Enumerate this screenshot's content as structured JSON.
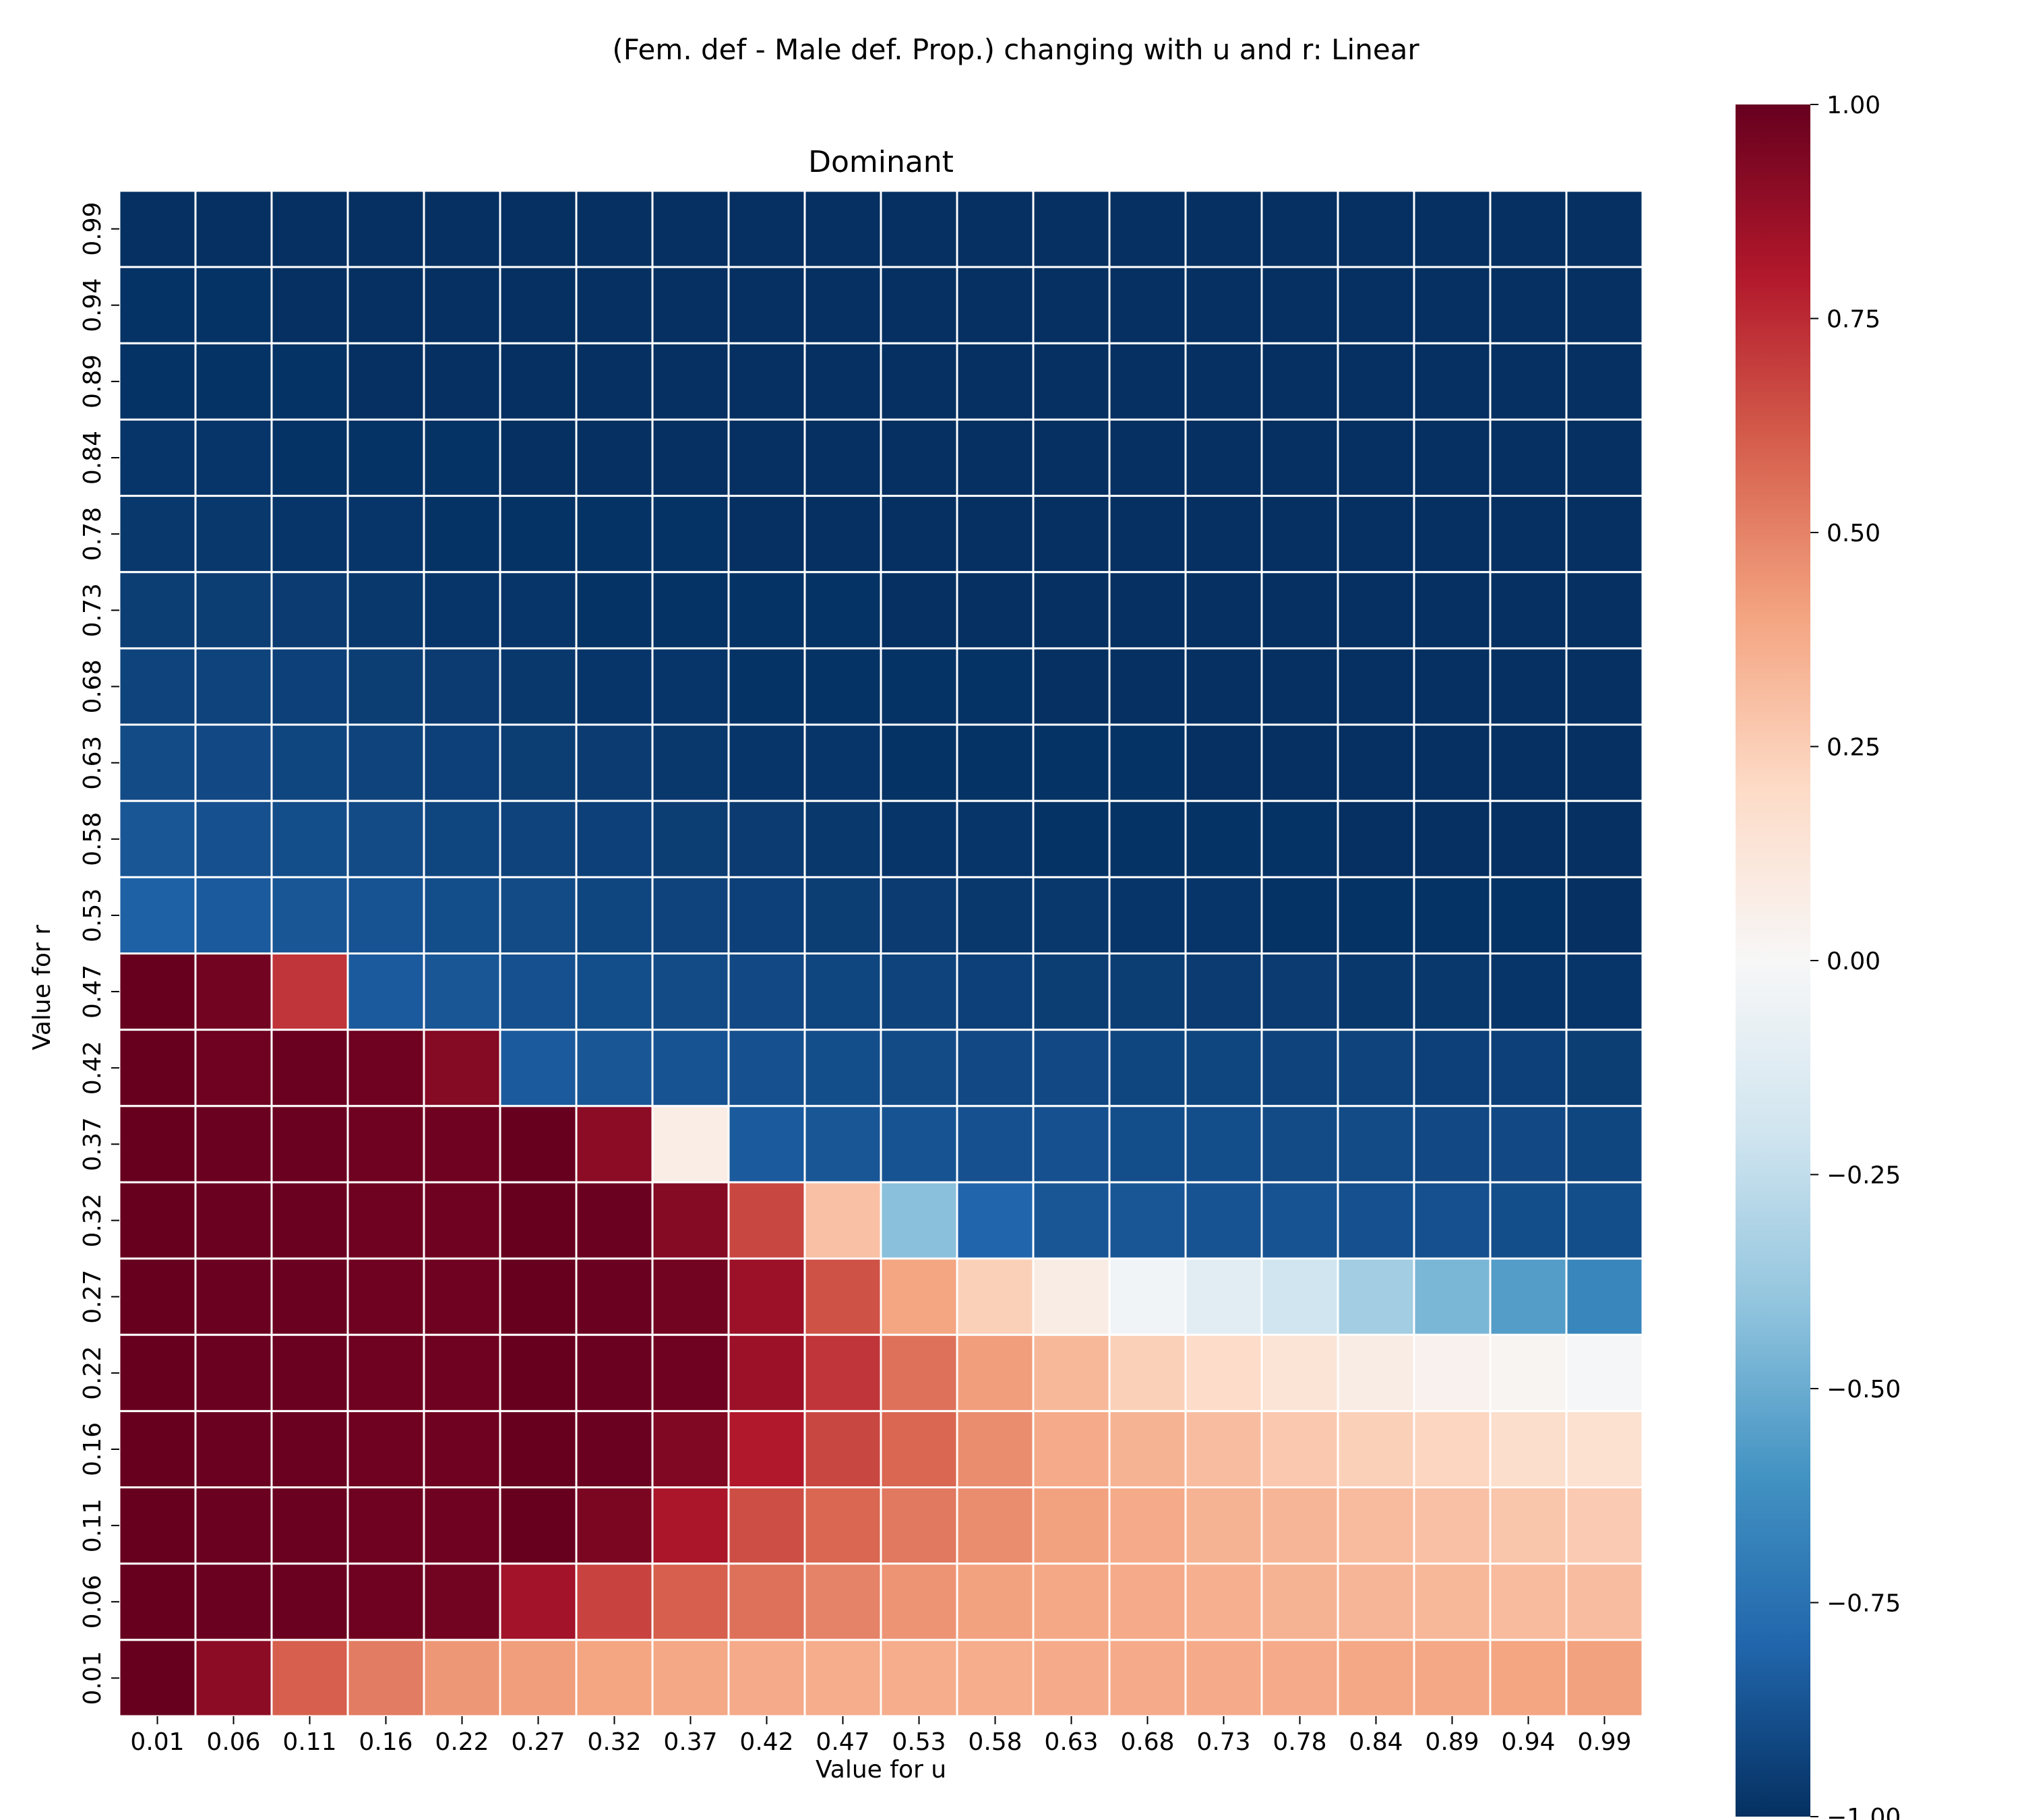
{
  "chart_data": {
    "type": "heatmap",
    "title": "(Fem. def - Male def. Prop.) changing with u and r: Linear",
    "subtitle": "Dominant",
    "xlabel": "Value for u",
    "ylabel": "Value for r",
    "x": [
      "0.01",
      "0.06",
      "0.11",
      "0.16",
      "0.22",
      "0.27",
      "0.32",
      "0.37",
      "0.42",
      "0.47",
      "0.53",
      "0.58",
      "0.63",
      "0.68",
      "0.73",
      "0.78",
      "0.84",
      "0.89",
      "0.94",
      "0.99"
    ],
    "y": [
      "0.99",
      "0.94",
      "0.89",
      "0.84",
      "0.78",
      "0.73",
      "0.68",
      "0.63",
      "0.58",
      "0.53",
      "0.47",
      "0.42",
      "0.37",
      "0.32",
      "0.27",
      "0.22",
      "0.16",
      "0.11",
      "0.06",
      "0.01"
    ],
    "values": [
      [
        -1.0,
        -1.0,
        -1.0,
        -1.0,
        -1.0,
        -1.0,
        -1.0,
        -1.0,
        -1.0,
        -1.0,
        -1.0,
        -1.0,
        -1.0,
        -1.0,
        -1.0,
        -1.0,
        -1.0,
        -1.0,
        -1.0,
        -1.0
      ],
      [
        -0.99,
        -0.99,
        -1.0,
        -1.0,
        -1.0,
        -1.0,
        -1.0,
        -1.0,
        -1.0,
        -1.0,
        -1.0,
        -1.0,
        -1.0,
        -1.0,
        -1.0,
        -1.0,
        -1.0,
        -1.0,
        -1.0,
        -1.0
      ],
      [
        -0.99,
        -0.99,
        -0.99,
        -1.0,
        -1.0,
        -1.0,
        -1.0,
        -1.0,
        -1.0,
        -1.0,
        -1.0,
        -1.0,
        -1.0,
        -1.0,
        -1.0,
        -1.0,
        -1.0,
        -1.0,
        -1.0,
        -1.0
      ],
      [
        -0.98,
        -0.98,
        -0.99,
        -0.99,
        -0.99,
        -1.0,
        -1.0,
        -1.0,
        -1.0,
        -1.0,
        -1.0,
        -1.0,
        -1.0,
        -1.0,
        -1.0,
        -1.0,
        -1.0,
        -1.0,
        -1.0,
        -1.0
      ],
      [
        -0.97,
        -0.97,
        -0.98,
        -0.98,
        -0.99,
        -0.99,
        -0.99,
        -0.99,
        -1.0,
        -1.0,
        -1.0,
        -1.0,
        -1.0,
        -1.0,
        -1.0,
        -1.0,
        -1.0,
        -1.0,
        -1.0,
        -1.0
      ],
      [
        -0.95,
        -0.95,
        -0.96,
        -0.97,
        -0.98,
        -0.98,
        -0.99,
        -0.99,
        -0.99,
        -0.99,
        -1.0,
        -1.0,
        -1.0,
        -1.0,
        -1.0,
        -1.0,
        -1.0,
        -1.0,
        -1.0,
        -1.0
      ],
      [
        -0.93,
        -0.93,
        -0.94,
        -0.95,
        -0.96,
        -0.97,
        -0.98,
        -0.98,
        -0.99,
        -0.99,
        -0.99,
        -0.99,
        -1.0,
        -1.0,
        -1.0,
        -1.0,
        -1.0,
        -1.0,
        -1.0,
        -1.0
      ],
      [
        -0.9,
        -0.91,
        -0.92,
        -0.93,
        -0.94,
        -0.95,
        -0.96,
        -0.97,
        -0.98,
        -0.98,
        -0.99,
        -0.99,
        -0.99,
        -0.99,
        -1.0,
        -1.0,
        -1.0,
        -1.0,
        -1.0,
        -1.0
      ],
      [
        -0.86,
        -0.88,
        -0.89,
        -0.9,
        -0.92,
        -0.93,
        -0.94,
        -0.95,
        -0.96,
        -0.97,
        -0.98,
        -0.98,
        -0.99,
        -0.99,
        -0.99,
        -0.99,
        -1.0,
        -1.0,
        -1.0,
        -1.0
      ],
      [
        -0.82,
        -0.84,
        -0.86,
        -0.87,
        -0.89,
        -0.9,
        -0.92,
        -0.93,
        -0.94,
        -0.95,
        -0.96,
        -0.97,
        -0.97,
        -0.98,
        -0.98,
        -0.99,
        -0.99,
        -0.99,
        -0.99,
        -1.0
      ],
      [
        1.0,
        0.97,
        0.72,
        -0.84,
        -0.86,
        -0.88,
        -0.89,
        -0.9,
        -0.91,
        -0.92,
        -0.93,
        -0.94,
        -0.95,
        -0.95,
        -0.96,
        -0.96,
        -0.97,
        -0.97,
        -0.98,
        -0.98
      ],
      [
        1.0,
        0.98,
        0.99,
        0.98,
        0.92,
        -0.84,
        -0.86,
        -0.87,
        -0.88,
        -0.89,
        -0.9,
        -0.91,
        -0.91,
        -0.92,
        -0.92,
        -0.93,
        -0.93,
        -0.94,
        -0.94,
        -0.95
      ],
      [
        1.0,
        0.99,
        0.99,
        0.98,
        0.98,
        1.0,
        0.9,
        0.07,
        -0.84,
        -0.86,
        -0.87,
        -0.88,
        -0.88,
        -0.89,
        -0.89,
        -0.9,
        -0.9,
        -0.91,
        -0.91,
        -0.92
      ],
      [
        1.0,
        0.99,
        0.99,
        0.98,
        0.98,
        1.0,
        0.99,
        0.92,
        0.67,
        0.3,
        -0.42,
        -0.8,
        -0.86,
        -0.86,
        -0.87,
        -0.87,
        -0.88,
        -0.88,
        -0.89,
        -0.89
      ],
      [
        1.0,
        0.99,
        0.99,
        0.98,
        0.98,
        1.0,
        0.99,
        0.97,
        0.86,
        0.64,
        0.4,
        0.24,
        0.08,
        -0.03,
        -0.11,
        -0.2,
        -0.35,
        -0.46,
        -0.56,
        -0.66
      ],
      [
        1.0,
        0.99,
        0.99,
        0.98,
        0.98,
        1.0,
        0.99,
        0.98,
        0.86,
        0.72,
        0.55,
        0.42,
        0.33,
        0.24,
        0.19,
        0.14,
        0.08,
        0.04,
        0.02,
        -0.01
      ],
      [
        1.0,
        0.99,
        0.99,
        0.98,
        0.98,
        1.0,
        0.99,
        0.93,
        0.8,
        0.67,
        0.58,
        0.47,
        0.38,
        0.35,
        0.31,
        0.27,
        0.24,
        0.22,
        0.18,
        0.16
      ],
      [
        1.0,
        0.99,
        0.99,
        0.98,
        0.98,
        1.0,
        0.95,
        0.82,
        0.65,
        0.58,
        0.53,
        0.47,
        0.41,
        0.38,
        0.35,
        0.34,
        0.32,
        0.3,
        0.28,
        0.26
      ],
      [
        1.0,
        0.99,
        0.99,
        0.98,
        0.97,
        0.84,
        0.68,
        0.6,
        0.55,
        0.5,
        0.45,
        0.41,
        0.39,
        0.38,
        0.36,
        0.35,
        0.34,
        0.33,
        0.32,
        0.31
      ],
      [
        1.0,
        0.9,
        0.6,
        0.52,
        0.44,
        0.42,
        0.4,
        0.39,
        0.38,
        0.37,
        0.37,
        0.37,
        0.38,
        0.38,
        0.38,
        0.38,
        0.39,
        0.39,
        0.4,
        0.41
      ]
    ],
    "vmin": -1.0,
    "vmax": 1.0,
    "colormap": "RdBu_r",
    "colorbar_ticks": [
      "1.00",
      "0.75",
      "0.50",
      "0.25",
      "0.00",
      "−0.25",
      "−0.50",
      "−0.75",
      "−1.00"
    ],
    "cell_border_color": "#ffffff"
  }
}
